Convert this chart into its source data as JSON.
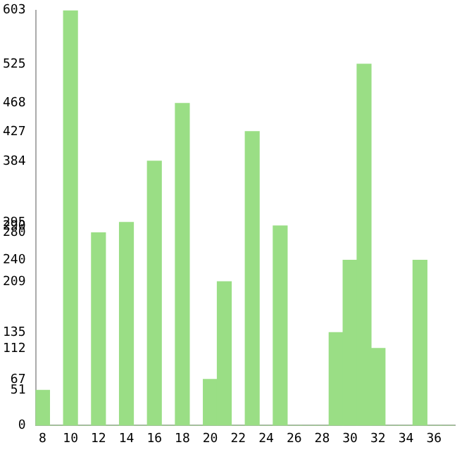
{
  "chart_data": {
    "type": "bar",
    "categories": [
      "8",
      null,
      "10",
      null,
      "12",
      null,
      "14",
      null,
      "16",
      null,
      "18",
      null,
      "20",
      null,
      "22",
      null,
      "24",
      null,
      "26",
      null,
      "28",
      null,
      "30",
      null,
      "32",
      null,
      "34",
      null,
      "36",
      null
    ],
    "values": [
      51,
      0,
      603,
      0,
      280,
      0,
      295,
      0,
      384,
      0,
      468,
      0,
      67,
      209,
      0,
      427,
      0,
      290,
      0,
      0,
      0,
      135,
      240,
      525,
      112,
      0,
      0,
      240,
      0,
      0
    ],
    "color": "#9ade85",
    "ylim": [
      0,
      603
    ],
    "yticks": [
      0,
      51,
      67,
      112,
      135,
      209,
      240,
      280,
      290,
      295,
      384,
      427,
      468,
      525,
      603
    ],
    "grid": false,
    "legend": false
  }
}
